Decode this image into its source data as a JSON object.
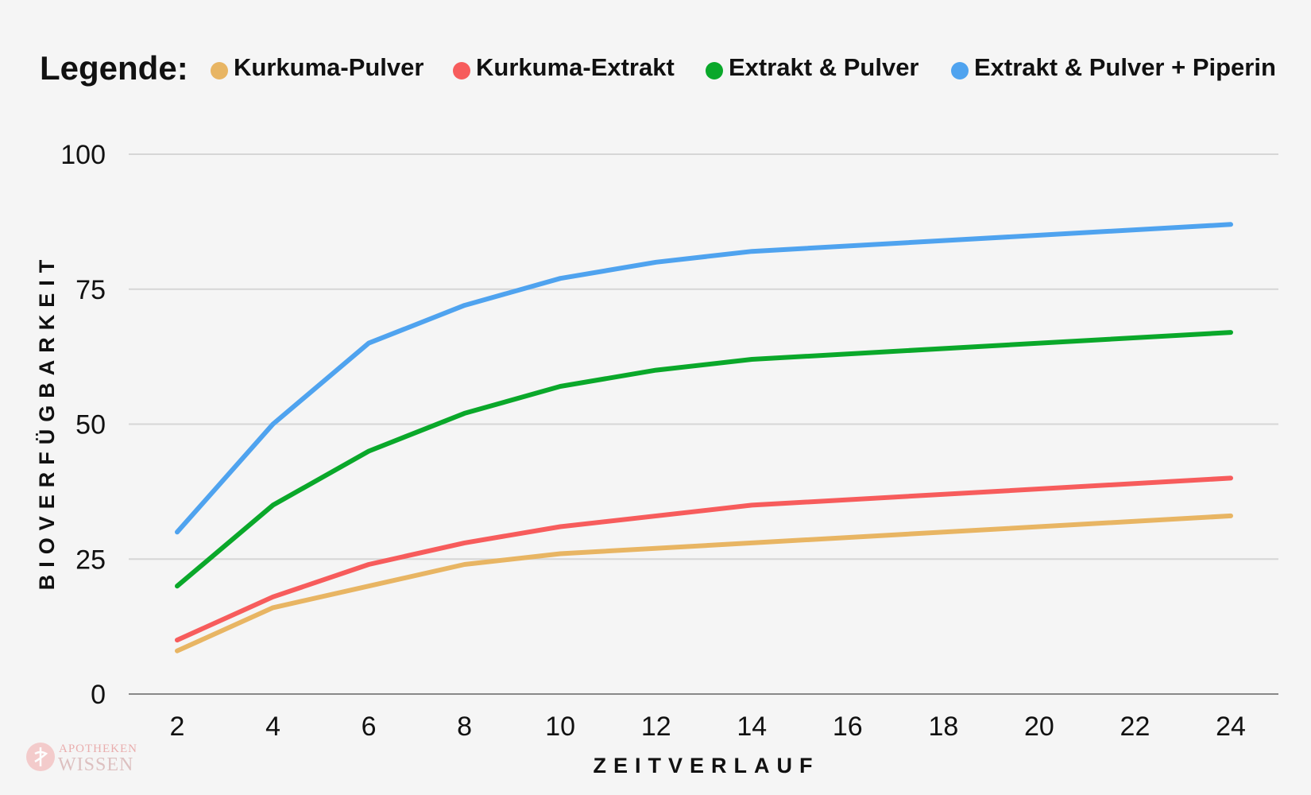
{
  "chart_data": {
    "type": "line",
    "legend_label": "Legende:",
    "legend_position": "top",
    "xlabel": "ZEITVERLAUF",
    "ylabel": "BIOVERFÜGBARKEIT",
    "x": [
      2,
      4,
      6,
      8,
      10,
      12,
      14,
      16,
      18,
      20,
      22,
      24
    ],
    "x_ticks": [
      "2",
      "4",
      "6",
      "8",
      "10",
      "12",
      "14",
      "16",
      "18",
      "20",
      "22",
      "24"
    ],
    "y_ticks": [
      "0",
      "25",
      "50",
      "75",
      "100"
    ],
    "ylim": [
      0,
      100
    ],
    "grid": true,
    "series": [
      {
        "name": "Kurkuma-Pulver",
        "color": "#e8b563",
        "x": [
          2,
          4,
          6,
          8,
          10,
          14,
          24
        ],
        "values": [
          8,
          16,
          20,
          24,
          26,
          28,
          33
        ]
      },
      {
        "name": "Kurkuma-Extrakt",
        "color": "#f75c5c",
        "x": [
          2,
          4,
          6,
          8,
          10,
          14,
          24
        ],
        "values": [
          10,
          18,
          24,
          28,
          31,
          35,
          40
        ]
      },
      {
        "name": "Extrakt & Pulver",
        "color": "#0aa82a",
        "x": [
          2,
          4,
          6,
          8,
          10,
          12,
          14,
          24
        ],
        "values": [
          20,
          35,
          45,
          52,
          57,
          60,
          62,
          67
        ]
      },
      {
        "name": "Extrakt & Pulver + Piperin",
        "color": "#4fa3ef",
        "x": [
          2,
          4,
          6,
          8,
          10,
          12,
          14,
          24
        ],
        "values": [
          30,
          50,
          65,
          72,
          77,
          80,
          82,
          87
        ]
      }
    ]
  },
  "watermark": {
    "line1": "APOTHEKEN",
    "line2": "WISSEN",
    "color": "#e8a1a1"
  }
}
